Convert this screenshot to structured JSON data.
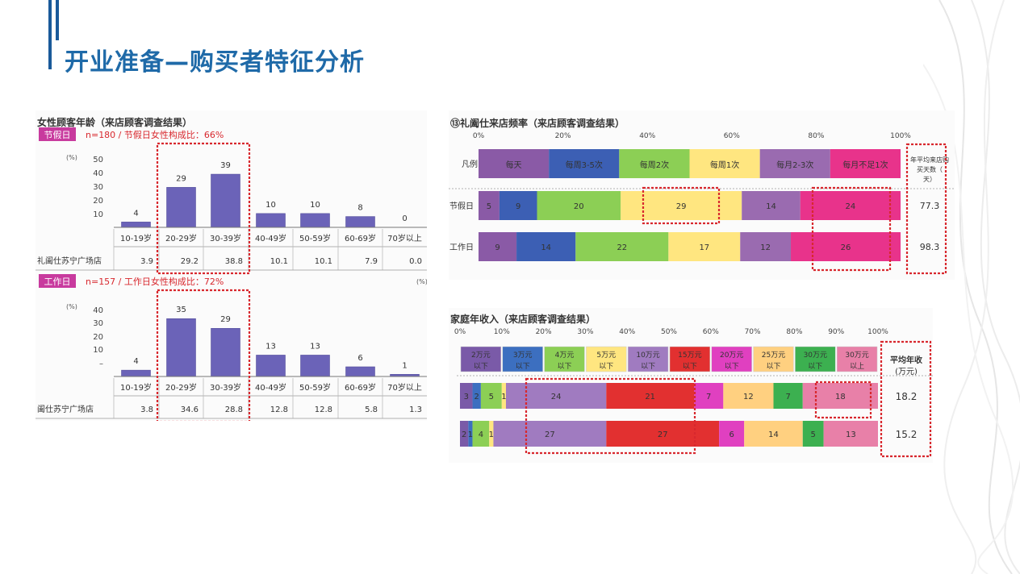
{
  "slide": {
    "title": "开业准备—购买者特征分析"
  },
  "colors": {
    "accent": "#1f6aa8",
    "age_bar": "#6b63b8",
    "highlight": "#d8282e",
    "freq": [
      "#8a5aa6",
      "#3c5fb4",
      "#8ccf55",
      "#ffe680",
      "#9a6bb0",
      "#e8338b"
    ],
    "income": [
      "#7a5aa8",
      "#3c6fc0",
      "#8ccf55",
      "#ffe680",
      "#a07bc0",
      "#e23030",
      "#e040c0",
      "#ffd080",
      "#3cb050",
      "#e880a8"
    ]
  },
  "chart_data": [
    {
      "type": "bar",
      "title": "女性顾客年龄（来店顾客调查结果）",
      "tag": "节假日",
      "subtitle": "n=180 / 节假日女性构成比：66%",
      "unit": "(%)",
      "y_ticks": [
        "50",
        "40",
        "30",
        "20",
        "10",
        "–"
      ],
      "ylim": [
        0,
        50
      ],
      "categories": [
        "10-19岁",
        "20-29岁",
        "30-39岁",
        "40-49岁",
        "50-59岁",
        "60-69岁",
        "70岁以上"
      ],
      "value_labels": [
        "4",
        "29",
        "39",
        "10",
        "10",
        "8",
        "0"
      ],
      "values": [
        3.9,
        29.2,
        38.8,
        10.1,
        10.1,
        7.9,
        0.0
      ],
      "row_label": "礼阖仕苏宁广场店",
      "row_values": [
        "3.9",
        "29.2",
        "38.8",
        "10.1",
        "10.1",
        "7.9",
        "0.0"
      ],
      "highlight_categories": [
        "20-29岁",
        "30-39岁"
      ]
    },
    {
      "type": "bar",
      "tag": "工作日",
      "subtitle": "n=157 / 工作日女性构成比：72%",
      "unit": "(%)",
      "y_ticks": [
        "40",
        "30",
        "20",
        "10",
        "–"
      ],
      "ylim": [
        0,
        45
      ],
      "categories": [
        "10-19岁",
        "20-29岁",
        "30-39岁",
        "40-49岁",
        "50-59岁",
        "60-69岁",
        "70岁以上"
      ],
      "value_labels": [
        "4",
        "35",
        "29",
        "13",
        "13",
        "6",
        "1"
      ],
      "values": [
        3.8,
        34.6,
        28.8,
        12.8,
        12.8,
        5.8,
        1.3
      ],
      "row_label": "阖仕苏宁广场店",
      "row_values": [
        "3.8",
        "34.6",
        "28.8",
        "12.8",
        "12.8",
        "5.8",
        "1.3"
      ],
      "highlight_categories": [
        "20-29岁",
        "30-39岁"
      ],
      "percent_mark": "(%)"
    },
    {
      "type": "bar",
      "subtype": "stacked-100-horizontal",
      "title": "⑬礼阖仕来店频率（来店顾客调查结果）",
      "x_ticks": [
        "0%",
        "20%",
        "40%",
        "60%",
        "80%",
        "100%"
      ],
      "legend_label": "凡例",
      "legend": [
        "每天",
        "每周3-5次",
        "每周2次",
        "每周1次",
        "每月2-3次",
        "每月不足1次"
      ],
      "rows": [
        {
          "label": "节假日",
          "values": [
            5,
            9,
            20,
            29,
            14,
            24
          ],
          "avg": "77.3"
        },
        {
          "label": "工作日",
          "values": [
            9,
            14,
            22,
            17,
            12,
            26
          ],
          "avg": "98.3"
        }
      ],
      "avg_header": "年平均来店购买天数（天）",
      "highlight_segments": [
        "每周1次",
        "每月不足1次"
      ]
    },
    {
      "type": "bar",
      "subtype": "stacked-100-horizontal",
      "title": "家庭年收入（来店顾客调查结果）",
      "x_ticks": [
        "0%",
        "10%",
        "20%",
        "30%",
        "40%",
        "50%",
        "60%",
        "70%",
        "80%",
        "90%",
        "100%"
      ],
      "legend": [
        [
          "2万元",
          "以下"
        ],
        [
          "3万元",
          "以下"
        ],
        [
          "4万元",
          "以下"
        ],
        [
          "5万元",
          "以下"
        ],
        [
          "10万元",
          "以下"
        ],
        [
          "15万元",
          "以下"
        ],
        [
          "20万元",
          "以下"
        ],
        [
          "25万元",
          "以下"
        ],
        [
          "30万元",
          "以下"
        ],
        [
          "30万元",
          "以上"
        ]
      ],
      "rows": [
        {
          "values": [
            3,
            2,
            5,
            1,
            24,
            21,
            7,
            12,
            7,
            18
          ],
          "avg": "18.2"
        },
        {
          "values": [
            2,
            1,
            4,
            1,
            27,
            27,
            6,
            14,
            5,
            13
          ],
          "avg": "15.2"
        }
      ],
      "avg_header": [
        "平均年收",
        "(万元)"
      ],
      "highlight_segments": [
        "10万元以下",
        "15万元以下",
        "30万元以上"
      ]
    }
  ]
}
